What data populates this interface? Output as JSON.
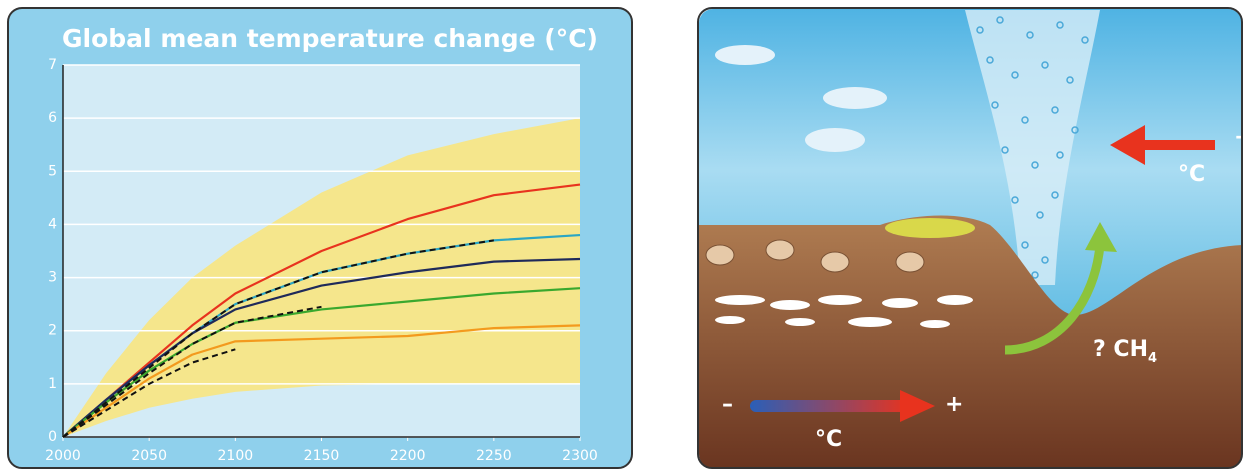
{
  "chart_data": {
    "type": "line",
    "title": "Global mean temperature change (°C)",
    "x": [
      2000,
      2025,
      2050,
      2075,
      2100,
      2150,
      2200,
      2250,
      2300
    ],
    "xlim": [
      2000,
      2300
    ],
    "xticks": [
      2000,
      2050,
      2100,
      2150,
      2200,
      2250,
      2300
    ],
    "ylim": [
      0,
      7
    ],
    "yticks": [
      0,
      1,
      2,
      3,
      4,
      5,
      6,
      7
    ],
    "grid": true,
    "band": {
      "color": "#f5e68c",
      "lower": [
        0,
        0.3,
        0.55,
        0.72,
        0.85,
        0.97,
        1.0,
        1.0,
        1.0
      ],
      "upper": [
        0,
        1.2,
        2.2,
        3.0,
        3.6,
        4.6,
        5.3,
        5.7,
        6.0
      ]
    },
    "series": [
      {
        "color": "#e8331e",
        "values": [
          0,
          0.7,
          1.4,
          2.1,
          2.7,
          3.5,
          4.1,
          4.55,
          4.75
        ]
      },
      {
        "color": "#2aa6c4",
        "values": [
          0,
          0.7,
          1.35,
          1.95,
          2.5,
          3.1,
          3.45,
          3.7,
          3.8
        ]
      },
      {
        "color": "#1f2a5a",
        "values": [
          0,
          0.7,
          1.35,
          1.95,
          2.4,
          2.85,
          3.1,
          3.3,
          3.35
        ]
      },
      {
        "color": "#3aa82e",
        "values": [
          0,
          0.65,
          1.25,
          1.75,
          2.15,
          2.4,
          2.55,
          2.7,
          2.8
        ]
      },
      {
        "color": "#f39a1e",
        "values": [
          0,
          0.55,
          1.1,
          1.55,
          1.8,
          1.85,
          1.9,
          2.05,
          2.1
        ]
      },
      {
        "color": "#111111",
        "dash": true,
        "values": [
          0,
          0.65,
          1.3,
          1.95,
          2.5,
          3.1,
          3.45,
          3.7,
          null
        ]
      },
      {
        "color": "#111111",
        "dash": true,
        "values": [
          0,
          0.6,
          1.2,
          1.75,
          2.15,
          2.45,
          null,
          null,
          null
        ]
      },
      {
        "color": "#111111",
        "dash": true,
        "values": [
          0,
          0.5,
          1.0,
          1.4,
          1.65,
          null,
          null,
          null,
          null
        ]
      }
    ]
  },
  "illustration": {
    "warming_plus": "+",
    "warming_unit": "°C",
    "methane": {
      "text": "? CH",
      "subscript": "4"
    },
    "scale_minus": "–",
    "scale_plus": "+",
    "scale_unit": "°C"
  }
}
